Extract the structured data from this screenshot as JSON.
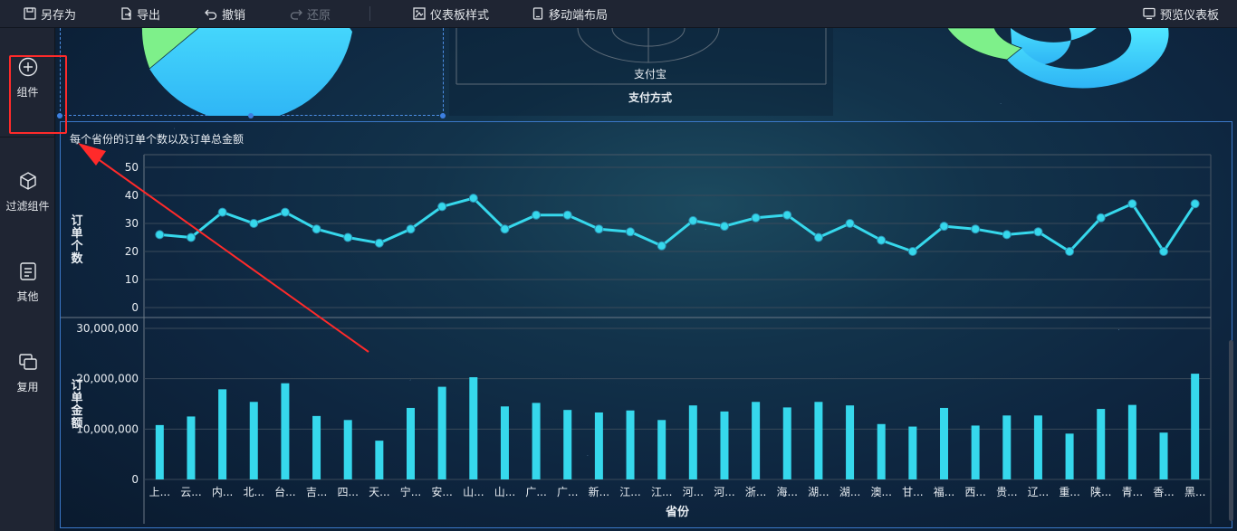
{
  "toolbar": {
    "save_as": "另存为",
    "export": "导出",
    "undo": "撤销",
    "redo": "还原",
    "dashboard_style": "仪表板样式",
    "mobile_layout": "移动端布局",
    "preview": "预览仪表板"
  },
  "sidebar": {
    "items": [
      {
        "label": "组件",
        "icon": "plus-circle-icon"
      },
      {
        "label": "过滤组件",
        "icon": "cube-icon"
      },
      {
        "label": "其他",
        "icon": "document-icon"
      },
      {
        "label": "复用",
        "icon": "stack-icon"
      }
    ]
  },
  "top_widgets": {
    "middle_category": "支付宝",
    "middle_axis_title": "支付方式"
  },
  "colors": {
    "accent": "#36d8ec",
    "selection": "#3d7fe0",
    "pie_green": "#7ef08a",
    "highlight": "#ff2a2a"
  },
  "chart_data": {
    "type": "line+bar",
    "title": "每个省份的订单个数以及订单总金额",
    "xlabel": "省份",
    "categories": [
      "上...",
      "云...",
      "内...",
      "北...",
      "台...",
      "吉...",
      "四...",
      "天...",
      "宁...",
      "安...",
      "山...",
      "山...",
      "广...",
      "广...",
      "新...",
      "江...",
      "江...",
      "河...",
      "河...",
      "浙...",
      "海...",
      "湖...",
      "湖...",
      "澳...",
      "甘...",
      "福...",
      "西...",
      "贵...",
      "辽...",
      "重...",
      "陕...",
      "青...",
      "香...",
      "黑..."
    ],
    "line": {
      "ylabel": "订单个数",
      "ylim": [
        0,
        50
      ],
      "ticks": [
        "0",
        "10",
        "20",
        "30",
        "40",
        "50"
      ],
      "values": [
        26,
        25,
        34,
        30,
        34,
        28,
        25,
        23,
        28,
        36,
        39,
        28,
        33,
        33,
        28,
        27,
        22,
        31,
        29,
        32,
        33,
        25,
        30,
        24,
        20,
        29,
        28,
        26,
        27,
        20,
        32,
        37,
        20,
        37
      ]
    },
    "bar": {
      "ylabel": "订单金额",
      "ylim": [
        0,
        30000000
      ],
      "ticks": [
        "0",
        "10,000,000",
        "20,000,000",
        "30,000,000"
      ],
      "values": [
        10800000,
        12500000,
        17900000,
        15400000,
        19100000,
        12600000,
        11800000,
        7700000,
        14200000,
        18400000,
        20300000,
        14500000,
        15200000,
        13800000,
        13300000,
        13700000,
        11800000,
        14700000,
        13500000,
        15400000,
        14300000,
        15400000,
        14700000,
        11000000,
        10500000,
        14200000,
        10700000,
        12700000,
        12700000,
        9100000,
        14000000,
        14800000,
        9300000,
        21000000
      ]
    }
  }
}
